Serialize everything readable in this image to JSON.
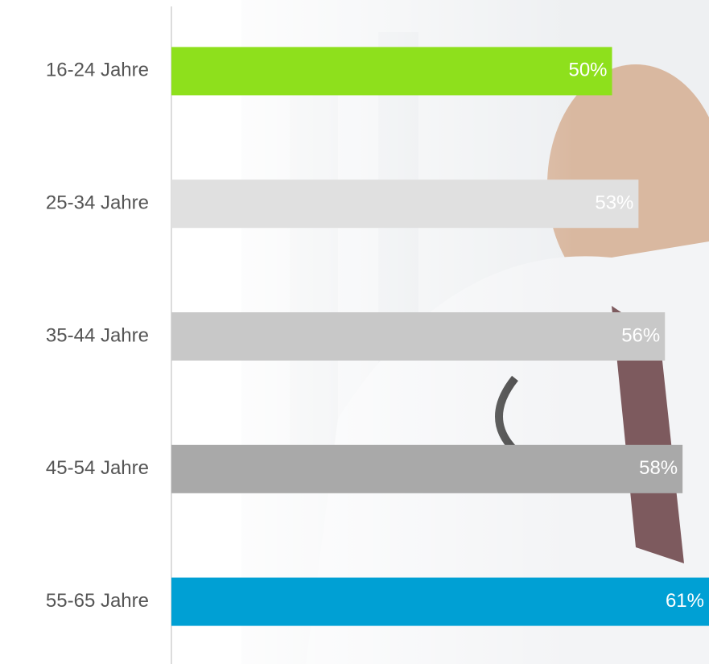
{
  "chart_data": {
    "type": "bar",
    "orientation": "horizontal",
    "categories": [
      "16-24 Jahre",
      "25-34 Jahre",
      "35-44 Jahre",
      "45-54 Jahre",
      "55-65 Jahre"
    ],
    "values": [
      50,
      53,
      56,
      58,
      61
    ],
    "value_labels": [
      "50%",
      "53%",
      "56%",
      "58%",
      "61%"
    ],
    "colors": [
      "#8ee01c",
      "#e0e0e0",
      "#c8c8c8",
      "#a9a9a9",
      "#00a0d4"
    ]
  }
}
